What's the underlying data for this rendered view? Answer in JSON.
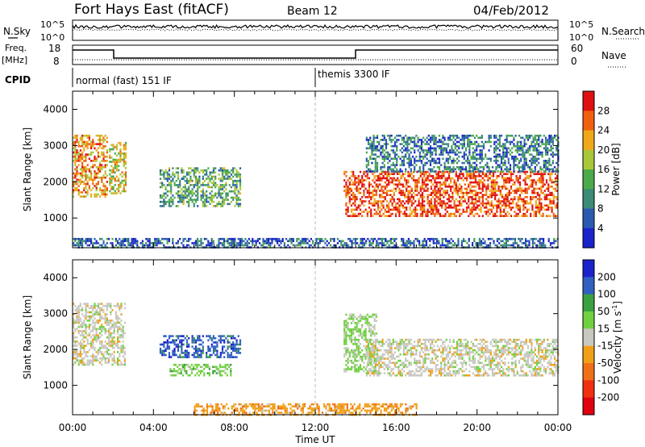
{
  "header": {
    "station": "Fort Hays East (fitACF)",
    "beam": "Beam 12",
    "date": "04/Feb/2012"
  },
  "top_panels": {
    "nsky_label": "N.Sky",
    "nsearch_label": "N.Search",
    "noise_ticks_left": [
      "10^5",
      "10^0"
    ],
    "noise_ticks_right": [
      "10^5",
      "10^0"
    ],
    "freq_label": "Freq.",
    "freq_unit": "[MHz]",
    "freq_ticks": [
      "18",
      "8"
    ],
    "nave_label": "Nave",
    "nave_ticks": [
      "60",
      "0"
    ],
    "cpid_label": "CPID",
    "cpid_segments": [
      {
        "name": "normal (fast) 151 IF",
        "start_hour": 0,
        "end_hour": 12
      },
      {
        "name": "themis 3300 IF",
        "start_hour": 12,
        "end_hour": 24
      }
    ]
  },
  "colors": {
    "power": [
      "#1a22cc",
      "#2a5ab0",
      "#3c8a78",
      "#4caa4a",
      "#a8c83a",
      "#f0a818",
      "#f06010",
      "#e01010"
    ],
    "velocity": [
      "#1a22cc",
      "#3060c0",
      "#3aa040",
      "#70d040",
      "#c8c8c0",
      "#f0a018",
      "#f07018",
      "#f03010",
      "#e00010"
    ]
  },
  "chart_data": [
    {
      "type": "heatmap",
      "panel": "power",
      "ylabel": "Slant Range [km]",
      "xlabel": "",
      "xlim": [
        0,
        24
      ],
      "ylim": [
        180,
        4500
      ],
      "y_ticks": [
        "1000",
        "2000",
        "3000",
        "4000"
      ],
      "x_ticks": [
        "00:00",
        "04:00",
        "08:00",
        "12:00",
        "16:00",
        "20:00",
        "00:00"
      ],
      "colorbar": {
        "label": "Power [dB]",
        "ticks": [
          "28",
          "24",
          "20",
          "16",
          "12",
          "8",
          "4"
        ],
        "range": [
          0,
          30
        ]
      },
      "regions": [
        {
          "t0": 0.0,
          "t1": 1.7,
          "r0": 1600,
          "r1": 3300,
          "level": 22
        },
        {
          "t0": 1.8,
          "t1": 2.6,
          "r0": 1700,
          "r1": 3100,
          "level": 18
        },
        {
          "t0": 4.3,
          "t1": 8.3,
          "r0": 1300,
          "r1": 2400,
          "level": 12
        },
        {
          "t0": 13.4,
          "t1": 24.0,
          "r0": 1050,
          "r1": 2300,
          "level": 26
        },
        {
          "t0": 14.5,
          "t1": 24.0,
          "r0": 2300,
          "r1": 3300,
          "level": 8
        },
        {
          "t0": 0.0,
          "t1": 24.0,
          "r0": 200,
          "r1": 450,
          "level": 6
        }
      ]
    },
    {
      "type": "heatmap",
      "panel": "velocity",
      "ylabel": "Slant Range [km]",
      "xlabel": "Time UT",
      "xlim": [
        0,
        24
      ],
      "ylim": [
        180,
        4500
      ],
      "y_ticks": [
        "1000",
        "2000",
        "3000",
        "4000"
      ],
      "x_ticks": [
        "00:00",
        "04:00",
        "08:00",
        "12:00",
        "16:00",
        "20:00",
        "00:00"
      ],
      "colorbar": {
        "label": "Velocity [m s",
        "label_sup": "-1",
        "label_end": "]",
        "ticks": [
          "200",
          "100",
          "50",
          "15",
          "-15",
          "-50",
          "-100",
          "-200"
        ],
        "range": [
          -250,
          250
        ]
      },
      "regions": [
        {
          "t0": 0.0,
          "t1": 2.6,
          "r0": 1600,
          "r1": 3300,
          "level": 0
        },
        {
          "t0": 4.3,
          "t1": 8.3,
          "r0": 1800,
          "r1": 2400,
          "level": 170
        },
        {
          "t0": 4.8,
          "t1": 7.8,
          "r0": 1300,
          "r1": 1600,
          "level": 60
        },
        {
          "t0": 13.4,
          "t1": 15.0,
          "r0": 1400,
          "r1": 3000,
          "level": 40
        },
        {
          "t0": 14.5,
          "t1": 24.0,
          "r0": 1300,
          "r1": 2300,
          "level": 0
        },
        {
          "t0": 6.0,
          "t1": 17.0,
          "r0": 200,
          "r1": 500,
          "level": -60
        }
      ]
    }
  ]
}
